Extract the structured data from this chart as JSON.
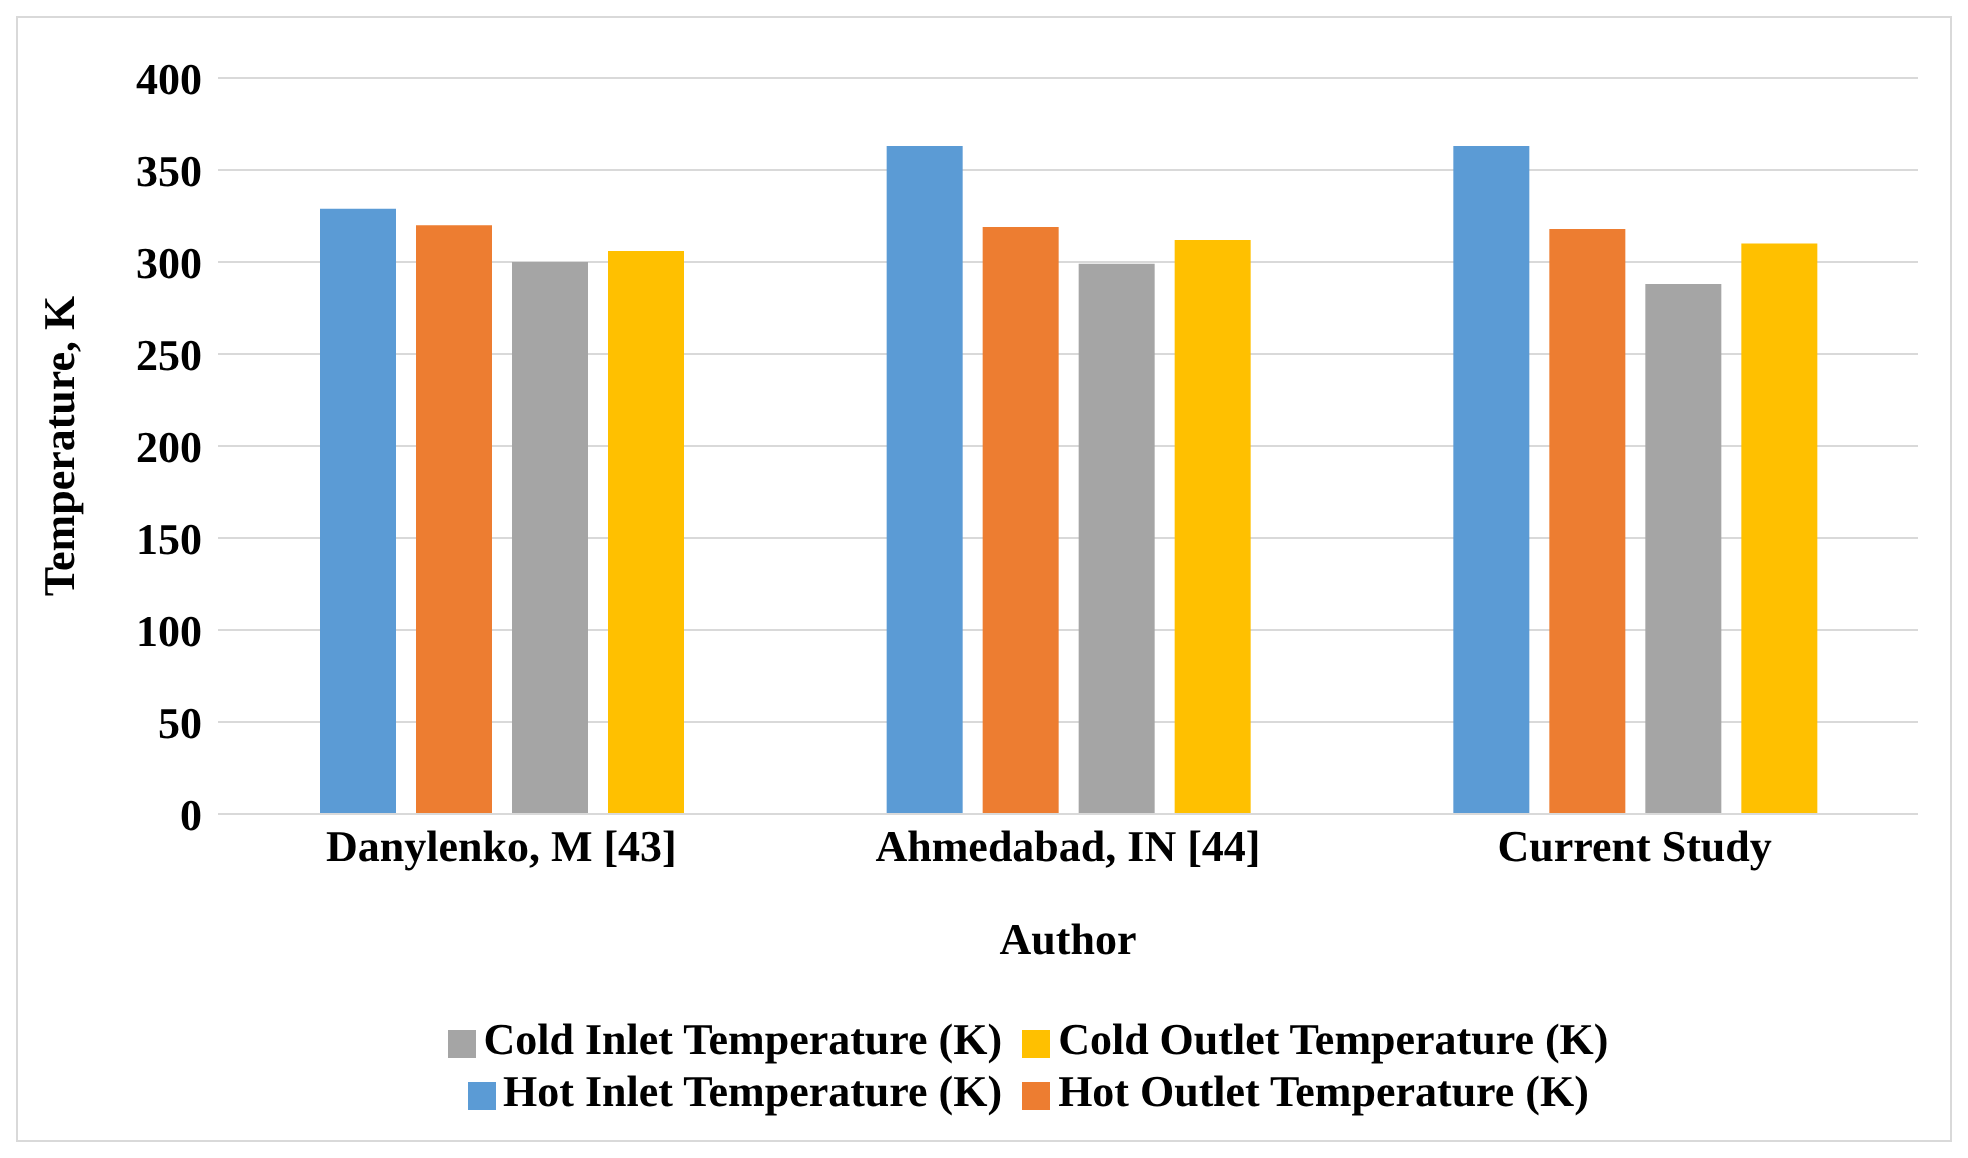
{
  "chart_data": {
    "type": "bar",
    "xlabel": "Author",
    "ylabel": "Temperature, K",
    "categories": [
      "Danylenko, M [43]",
      "Ahmedabad, IN [44]",
      "Current Study"
    ],
    "series": [
      {
        "name": "Hot Inlet Temperature (K)",
        "color": "#5b9bd5",
        "values": [
          329,
          363,
          363
        ]
      },
      {
        "name": "Hot Outlet Temperature (K)",
        "color": "#ed7d31",
        "values": [
          320,
          319,
          318
        ]
      },
      {
        "name": "Cold Inlet Temperature (K)",
        "color": "#a5a5a5",
        "values": [
          300,
          299,
          288
        ]
      },
      {
        "name": "Cold Outlet Temperature (K)",
        "color": "#ffc000",
        "values": [
          306,
          312,
          310
        ]
      }
    ],
    "ylim": [
      0,
      400
    ],
    "yticks": [
      0,
      50,
      100,
      150,
      200,
      250,
      300,
      350,
      400
    ],
    "grid": "y",
    "legend": "bottom"
  }
}
